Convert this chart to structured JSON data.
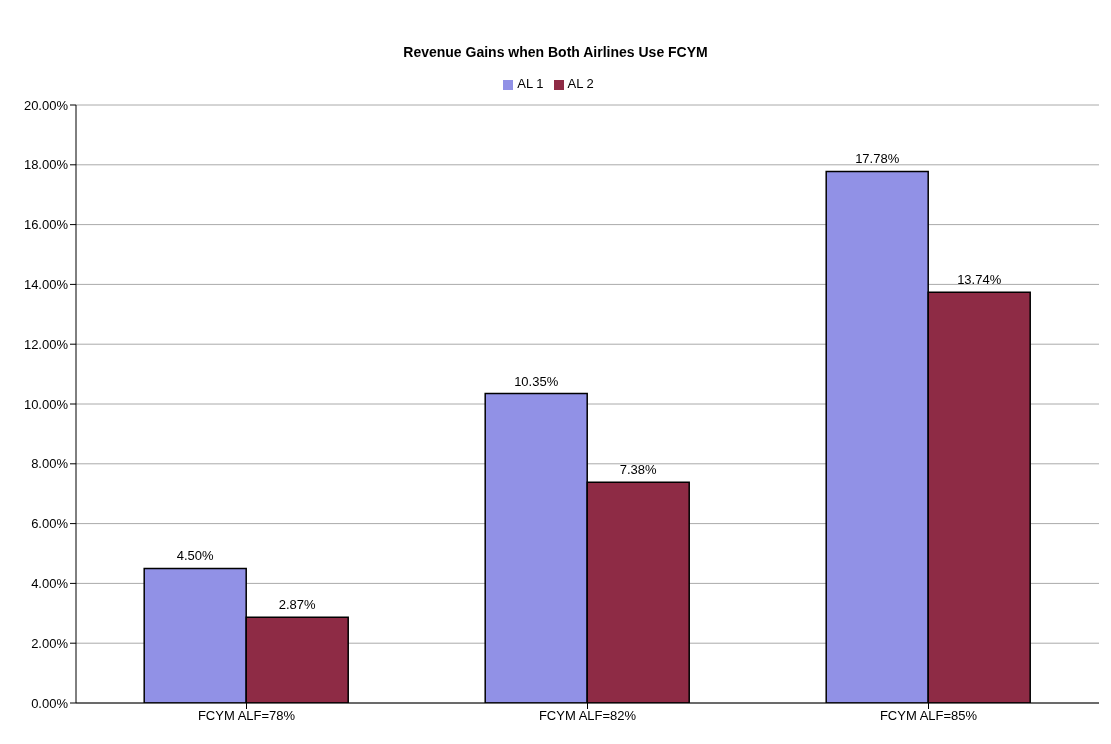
{
  "chart_data": {
    "type": "bar",
    "title": "Revenue Gains when Both Airlines Use FCYM",
    "categories": [
      "FCYM ALF=78%",
      "FCYM ALF=82%",
      "FCYM ALF=85%"
    ],
    "series": [
      {
        "name": "AL 1",
        "color": "#9191e6",
        "values": [
          4.5,
          10.35,
          17.78
        ],
        "value_labels": [
          "4.50%",
          "10.35%",
          "17.78%"
        ]
      },
      {
        "name": "AL 2",
        "color": "#8e2b45",
        "values": [
          2.87,
          7.38,
          13.74
        ],
        "value_labels": [
          "2.87%",
          "7.38%",
          "13.74%"
        ]
      }
    ],
    "ylim": [
      0,
      20
    ],
    "yticks": [
      {
        "value": 0,
        "label": "0.00%"
      },
      {
        "value": 2,
        "label": "2.00%"
      },
      {
        "value": 4,
        "label": "4.00%"
      },
      {
        "value": 6,
        "label": "6.00%"
      },
      {
        "value": 8,
        "label": "8.00%"
      },
      {
        "value": 10,
        "label": "10.00%"
      },
      {
        "value": 12,
        "label": "12.00%"
      },
      {
        "value": 14,
        "label": "14.00%"
      },
      {
        "value": 16,
        "label": "16.00%"
      },
      {
        "value": 18,
        "label": "18.00%"
      },
      {
        "value": 20,
        "label": "20.00%"
      }
    ],
    "grid": "y",
    "legend": "top"
  }
}
